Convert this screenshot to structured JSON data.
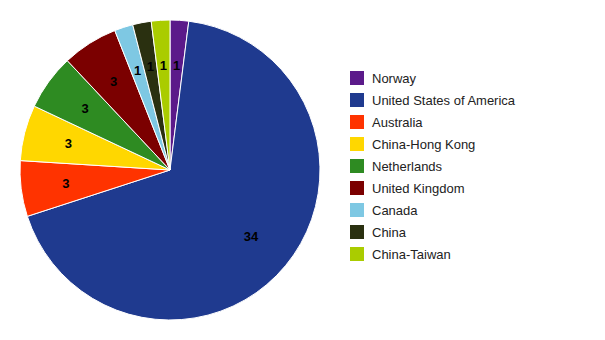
{
  "chart_data": {
    "type": "pie",
    "categories": [
      "Norway",
      "United States of America",
      "Australia",
      "China-Hong Kong",
      "Netherlands",
      "United Kingdom",
      "Canada",
      "China",
      "China-Taiwan"
    ],
    "values": [
      1,
      34,
      3,
      3,
      3,
      3,
      1,
      1,
      1
    ],
    "colors": [
      "#5B1A8A",
      "#1F3A8F",
      "#FF3300",
      "#FFD700",
      "#2E8B22",
      "#7B0000",
      "#7EC8E3",
      "#2A3010",
      "#AACC00"
    ],
    "data_labels": true,
    "legend": "right"
  }
}
